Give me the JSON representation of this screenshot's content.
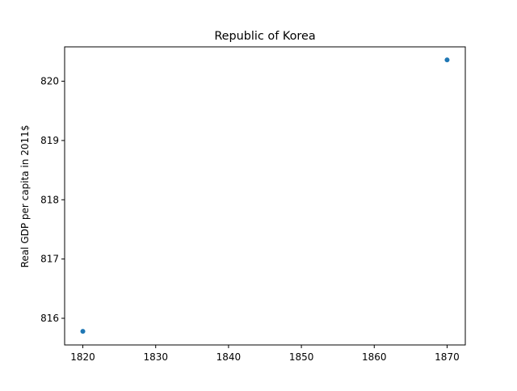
{
  "chart_data": {
    "type": "scatter",
    "title": "Republic of Korea",
    "xlabel": "",
    "ylabel": "Real GDP per capita in 2011$",
    "xlim": [
      1817.5,
      1872.5
    ],
    "ylim": [
      815.55,
      820.58
    ],
    "xticks": [
      1820,
      1830,
      1840,
      1850,
      1860,
      1870
    ],
    "yticks": [
      816,
      817,
      818,
      819,
      820
    ],
    "grid": false,
    "series": [
      {
        "color": "#1f77b4",
        "points": [
          {
            "x": 1820,
            "y": 815.78
          },
          {
            "x": 1870,
            "y": 820.36
          }
        ]
      }
    ]
  }
}
